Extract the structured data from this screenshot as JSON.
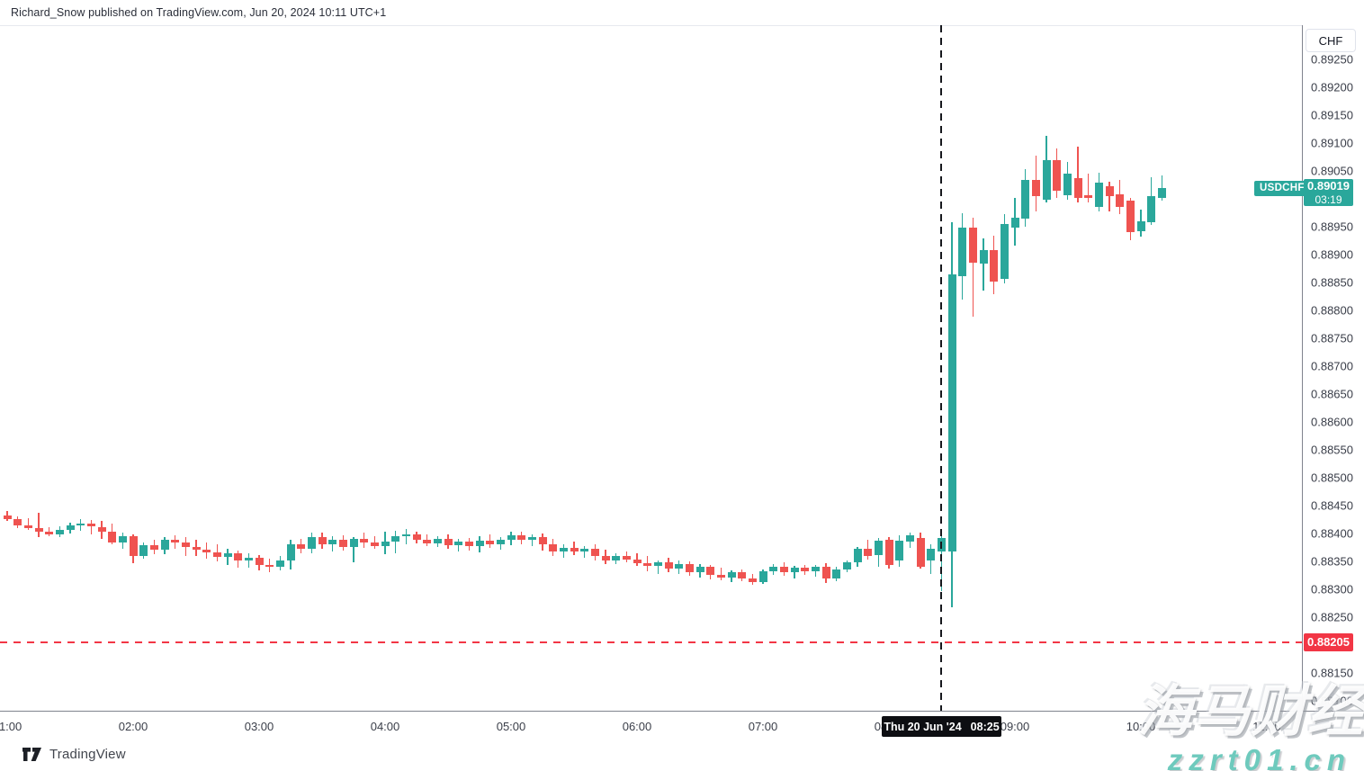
{
  "header": {
    "attribution": "Richard_Snow published on TradingView.com, Jun 20, 2024 10:11 UTC+1"
  },
  "symbol_flag": "USDCHF",
  "price_scale": {
    "currency_button": "CHF",
    "tick_labels": [
      "0.89250",
      "0.89200",
      "0.89150",
      "0.89100",
      "0.89050",
      "0.88950",
      "0.88900",
      "0.88850",
      "0.88800",
      "0.88750",
      "0.88700",
      "0.88650",
      "0.88600",
      "0.88550",
      "0.88500",
      "0.88450",
      "0.88400",
      "0.88350",
      "0.88300",
      "0.88250",
      "0.88150",
      "0.88100"
    ],
    "current_price_label": {
      "value": "0.89019",
      "countdown": "03:19"
    },
    "alert_price_label": {
      "value": "0.88205"
    }
  },
  "time_axis": {
    "labels": [
      "01:00",
      "02:00",
      "03:00",
      "04:00",
      "05:00",
      "06:00",
      "07:00",
      "08:00",
      "09:00",
      "10:00",
      "11:00"
    ]
  },
  "crosshair_tooltip": {
    "date": "Thu 20 Jun '24",
    "time": "08:25"
  },
  "footer": {
    "logo_text": "TradingView"
  },
  "watermark": {
    "line1": "海马财经",
    "line2": "zzrt01.cn"
  },
  "colors": {
    "up": "#2aa79b",
    "down": "#ef5350",
    "alert": "#f23645",
    "price_label_bg": "#2aa79b",
    "crosshair": "#16181d"
  },
  "chart_data": {
    "type": "candlestick",
    "symbol": "USDCHF",
    "interval": "5m",
    "title": "USDCHF 5-minute candles, Jun 20 2024",
    "ylabel": "CHF",
    "y_axis": {
      "min": 0.8809,
      "max": 0.89285,
      "tick_step": 0.0005,
      "grid": false
    },
    "x_axis": {
      "start": "01:00",
      "end": "10:10",
      "step_minutes": 5
    },
    "levels": {
      "current_price": 0.89019,
      "alert_line": 0.88205,
      "crosshair_time": "08:25"
    },
    "candles": [
      [
        "01:00",
        0.88432,
        0.8844,
        0.88422,
        0.88426
      ],
      [
        "01:05",
        0.88426,
        0.88431,
        0.88409,
        0.88414
      ],
      [
        "01:10",
        0.88414,
        0.88427,
        0.88406,
        0.8841
      ],
      [
        "01:15",
        0.8841,
        0.88437,
        0.88394,
        0.88403
      ],
      [
        "01:20",
        0.88403,
        0.88412,
        0.88395,
        0.88399
      ],
      [
        "01:25",
        0.88399,
        0.88413,
        0.88394,
        0.88406
      ],
      [
        "01:30",
        0.88406,
        0.88419,
        0.884,
        0.88415
      ],
      [
        "01:35",
        0.88415,
        0.88426,
        0.88404,
        0.88418
      ],
      [
        "01:40",
        0.88418,
        0.88424,
        0.88398,
        0.88412
      ],
      [
        "01:45",
        0.88412,
        0.88423,
        0.8839,
        0.88404
      ],
      [
        "01:50",
        0.88404,
        0.88418,
        0.8838,
        0.88384
      ],
      [
        "01:55",
        0.88384,
        0.88401,
        0.88372,
        0.88395
      ],
      [
        "02:00",
        0.88395,
        0.88398,
        0.88346,
        0.88359
      ],
      [
        "02:05",
        0.88359,
        0.88384,
        0.88354,
        0.88379
      ],
      [
        "02:10",
        0.88379,
        0.88389,
        0.88363,
        0.88371
      ],
      [
        "02:15",
        0.88371,
        0.88393,
        0.88363,
        0.88388
      ],
      [
        "02:20",
        0.88388,
        0.88397,
        0.88372,
        0.88384
      ],
      [
        "02:25",
        0.88384,
        0.88393,
        0.8836,
        0.88376
      ],
      [
        "02:30",
        0.88376,
        0.88388,
        0.88359,
        0.88371
      ],
      [
        "02:35",
        0.88371,
        0.88384,
        0.88355,
        0.88366
      ],
      [
        "02:40",
        0.88366,
        0.8838,
        0.8835,
        0.88358
      ],
      [
        "02:45",
        0.88358,
        0.88372,
        0.88343,
        0.88364
      ],
      [
        "02:50",
        0.88364,
        0.8837,
        0.88339,
        0.88352
      ],
      [
        "02:55",
        0.88352,
        0.88364,
        0.88339,
        0.88357
      ],
      [
        "03:00",
        0.88357,
        0.88362,
        0.88334,
        0.88343
      ],
      [
        "03:05",
        0.88343,
        0.88355,
        0.88331,
        0.8834
      ],
      [
        "03:10",
        0.8834,
        0.88359,
        0.88334,
        0.88352
      ],
      [
        "03:15",
        0.88352,
        0.88388,
        0.88336,
        0.8838
      ],
      [
        "03:20",
        0.8838,
        0.8839,
        0.88364,
        0.88372
      ],
      [
        "03:25",
        0.88372,
        0.88401,
        0.88364,
        0.88393
      ],
      [
        "03:30",
        0.88393,
        0.88401,
        0.88372,
        0.8838
      ],
      [
        "03:35",
        0.8838,
        0.88396,
        0.88368,
        0.88389
      ],
      [
        "03:40",
        0.88389,
        0.88397,
        0.8837,
        0.88376
      ],
      [
        "03:45",
        0.88376,
        0.88393,
        0.88348,
        0.8839
      ],
      [
        "03:50",
        0.8839,
        0.88401,
        0.88374,
        0.88384
      ],
      [
        "03:55",
        0.88384,
        0.88395,
        0.88372,
        0.88378
      ],
      [
        "04:00",
        0.88378,
        0.88403,
        0.88362,
        0.88386
      ],
      [
        "04:05",
        0.88386,
        0.88405,
        0.88365,
        0.88395
      ],
      [
        "04:10",
        0.88395,
        0.88408,
        0.8838,
        0.88398
      ],
      [
        "04:15",
        0.88398,
        0.88404,
        0.88382,
        0.88389
      ],
      [
        "04:20",
        0.88389,
        0.88398,
        0.88377,
        0.88382
      ],
      [
        "04:25",
        0.88382,
        0.88395,
        0.88375,
        0.88391
      ],
      [
        "04:30",
        0.88391,
        0.88398,
        0.88372,
        0.88379
      ],
      [
        "04:35",
        0.88379,
        0.88391,
        0.88368,
        0.88385
      ],
      [
        "04:40",
        0.88385,
        0.88392,
        0.8837,
        0.88377
      ],
      [
        "04:45",
        0.88377,
        0.88395,
        0.88366,
        0.88387
      ],
      [
        "04:50",
        0.88387,
        0.88399,
        0.88374,
        0.8838
      ],
      [
        "04:55",
        0.8838,
        0.88394,
        0.88371,
        0.88389
      ],
      [
        "05:00",
        0.88389,
        0.88403,
        0.88379,
        0.88397
      ],
      [
        "05:05",
        0.88397,
        0.88404,
        0.8838,
        0.88388
      ],
      [
        "05:10",
        0.88388,
        0.88398,
        0.88378,
        0.88394
      ],
      [
        "05:15",
        0.88394,
        0.884,
        0.88369,
        0.88381
      ],
      [
        "05:20",
        0.88381,
        0.8839,
        0.8836,
        0.88367
      ],
      [
        "05:25",
        0.88367,
        0.8838,
        0.88357,
        0.88374
      ],
      [
        "05:30",
        0.88374,
        0.88386,
        0.88362,
        0.88368
      ],
      [
        "05:35",
        0.88368,
        0.88377,
        0.88356,
        0.88372
      ],
      [
        "05:40",
        0.88372,
        0.88381,
        0.88352,
        0.8836
      ],
      [
        "05:45",
        0.8836,
        0.88371,
        0.88346,
        0.88352
      ],
      [
        "05:50",
        0.88352,
        0.88365,
        0.88345,
        0.88359
      ],
      [
        "05:55",
        0.88359,
        0.88368,
        0.88348,
        0.88353
      ],
      [
        "06:00",
        0.88353,
        0.88364,
        0.88342,
        0.88347
      ],
      [
        "06:05",
        0.88347,
        0.8836,
        0.88332,
        0.88342
      ],
      [
        "06:10",
        0.88342,
        0.88352,
        0.88328,
        0.88349
      ],
      [
        "06:15",
        0.88349,
        0.88356,
        0.8833,
        0.88337
      ],
      [
        "06:20",
        0.88337,
        0.88351,
        0.88327,
        0.88345
      ],
      [
        "06:25",
        0.88345,
        0.8835,
        0.88324,
        0.88331
      ],
      [
        "06:30",
        0.88331,
        0.88346,
        0.88321,
        0.8834
      ],
      [
        "06:35",
        0.8834,
        0.88344,
        0.88318,
        0.88326
      ],
      [
        "06:40",
        0.88326,
        0.88338,
        0.88316,
        0.88321
      ],
      [
        "06:45",
        0.88321,
        0.88334,
        0.88312,
        0.8833
      ],
      [
        "06:50",
        0.8833,
        0.88336,
        0.88315,
        0.8832
      ],
      [
        "06:55",
        0.8832,
        0.88328,
        0.88308,
        0.88313
      ],
      [
        "07:00",
        0.88313,
        0.88336,
        0.8831,
        0.88332
      ],
      [
        "07:05",
        0.88332,
        0.88345,
        0.88325,
        0.88341
      ],
      [
        "07:10",
        0.88341,
        0.88348,
        0.88324,
        0.8833
      ],
      [
        "07:15",
        0.8833,
        0.88342,
        0.8832,
        0.88338
      ],
      [
        "07:20",
        0.88338,
        0.88344,
        0.88326,
        0.88332
      ],
      [
        "07:25",
        0.88332,
        0.88343,
        0.88322,
        0.8834
      ],
      [
        "07:30",
        0.8834,
        0.88347,
        0.88311,
        0.8832
      ],
      [
        "07:35",
        0.8832,
        0.88341,
        0.88314,
        0.88336
      ],
      [
        "07:40",
        0.88336,
        0.88352,
        0.8833,
        0.88348
      ],
      [
        "07:45",
        0.88348,
        0.88376,
        0.8834,
        0.88373
      ],
      [
        "07:50",
        0.88373,
        0.88389,
        0.88353,
        0.8836
      ],
      [
        "07:55",
        0.88361,
        0.88392,
        0.8834,
        0.88387
      ],
      [
        "08:00",
        0.88389,
        0.88394,
        0.88337,
        0.88344
      ],
      [
        "08:05",
        0.88352,
        0.88397,
        0.8834,
        0.88387
      ],
      [
        "08:10",
        0.88386,
        0.88402,
        0.88374,
        0.88397
      ],
      [
        "08:15",
        0.88392,
        0.88402,
        0.88337,
        0.8834
      ],
      [
        "08:20",
        0.88352,
        0.88381,
        0.88327,
        0.88373
      ],
      [
        "08:25",
        0.88368,
        0.88397,
        0.88297,
        0.88392
      ],
      [
        "08:30",
        0.88368,
        0.88958,
        0.88268,
        0.88865
      ],
      [
        "08:35",
        0.88861,
        0.88974,
        0.88819,
        0.88948
      ],
      [
        "08:40",
        0.88948,
        0.88966,
        0.88789,
        0.88885
      ],
      [
        "08:45",
        0.88884,
        0.88929,
        0.88835,
        0.88908
      ],
      [
        "08:50",
        0.88908,
        0.88934,
        0.88829,
        0.88852
      ],
      [
        "08:55",
        0.88857,
        0.88973,
        0.88849,
        0.88955
      ],
      [
        "09:00",
        0.88948,
        0.89002,
        0.88916,
        0.88966
      ],
      [
        "09:05",
        0.88965,
        0.89053,
        0.8895,
        0.89034
      ],
      [
        "09:10",
        0.89034,
        0.89078,
        0.88977,
        0.89005
      ],
      [
        "09:15",
        0.88998,
        0.89113,
        0.88994,
        0.89069
      ],
      [
        "09:20",
        0.89069,
        0.8909,
        0.89002,
        0.89015
      ],
      [
        "09:25",
        0.89007,
        0.89066,
        0.88998,
        0.89045
      ],
      [
        "09:30",
        0.89037,
        0.89094,
        0.88994,
        0.89002
      ],
      [
        "09:35",
        0.89007,
        0.89045,
        0.88994,
        0.89002
      ],
      [
        "09:40",
        0.88985,
        0.89047,
        0.88977,
        0.89029
      ],
      [
        "09:45",
        0.89022,
        0.89031,
        0.88977,
        0.89005
      ],
      [
        "09:50",
        0.89008,
        0.89034,
        0.88973,
        0.88985
      ],
      [
        "09:55",
        0.88997,
        0.89002,
        0.88926,
        0.8894
      ],
      [
        "10:00",
        0.88942,
        0.88981,
        0.88932,
        0.8896
      ],
      [
        "10:05",
        0.88958,
        0.89039,
        0.88953,
        0.89005
      ],
      [
        "10:10",
        0.89002,
        0.89042,
        0.88997,
        0.89019
      ]
    ]
  }
}
